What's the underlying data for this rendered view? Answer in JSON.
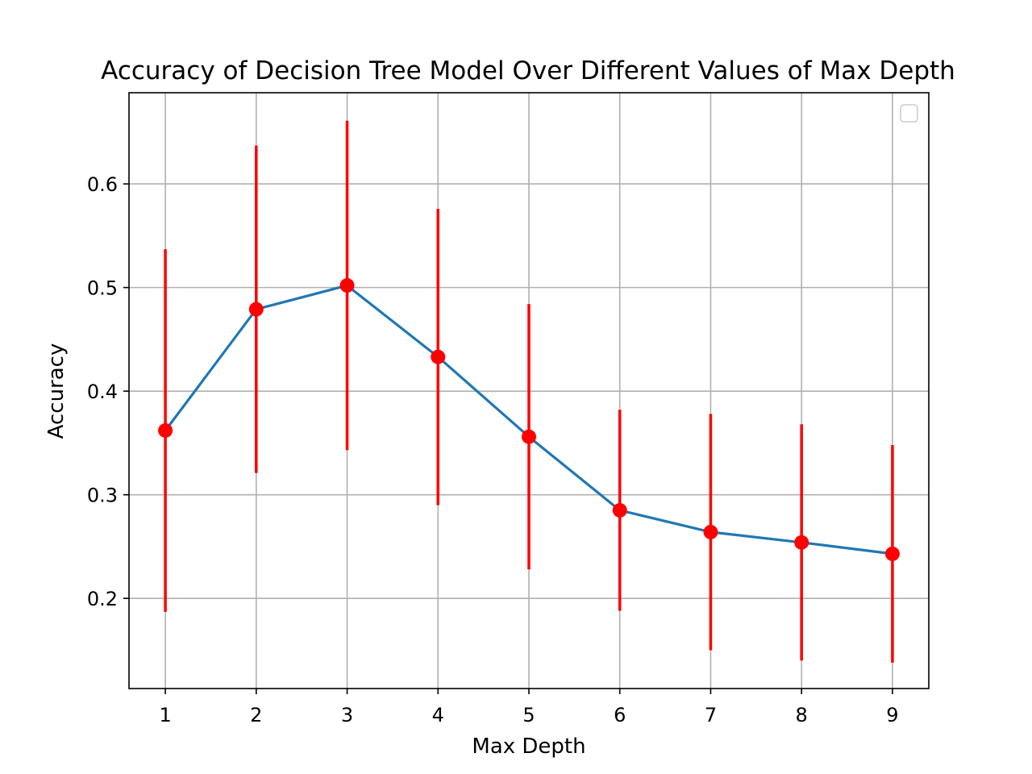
{
  "chart_data": {
    "type": "line",
    "title": "Accuracy of Decision Tree Model Over Different Values of Max Depth",
    "xlabel": "Max Depth",
    "ylabel": "Accuracy",
    "x": [
      1,
      2,
      3,
      4,
      5,
      6,
      7,
      8,
      9
    ],
    "x_ticks": [
      "1",
      "2",
      "3",
      "4",
      "5",
      "6",
      "7",
      "8",
      "9"
    ],
    "y_ticks": [
      "0.2",
      "0.3",
      "0.4",
      "0.5",
      "0.6"
    ],
    "xlim": [
      0.6,
      9.4
    ],
    "ylim": [
      0.113,
      0.688
    ],
    "grid": true,
    "legend": "top-right (empty)",
    "series": [
      {
        "values": [
          0.362,
          0.479,
          0.502,
          0.433,
          0.356,
          0.285,
          0.264,
          0.254,
          0.243
        ],
        "error": [
          0.175,
          0.158,
          0.159,
          0.143,
          0.128,
          0.097,
          0.114,
          0.114,
          0.105
        ],
        "line_color": "#1f77b4",
        "marker_color": "#ff0000",
        "error_color": "#ff0000"
      }
    ]
  }
}
